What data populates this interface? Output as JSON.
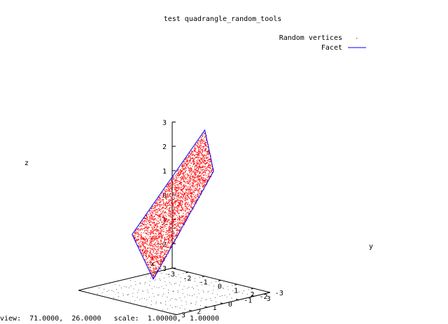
{
  "chart_data": {
    "type": "scatter3d",
    "title": "test quadrangle_random_tools",
    "xlabel": "x",
    "ylabel": "y",
    "zlabel": "z",
    "xlim": [
      -3,
      3
    ],
    "ylim": [
      -3,
      3
    ],
    "zlim": [
      -3,
      3
    ],
    "x_ticks": [
      "-3",
      "-2",
      "-1",
      "0",
      "1",
      "2",
      "3"
    ],
    "y_ticks": [
      "-3",
      "-2",
      "-1",
      "0",
      "1",
      "2",
      "3"
    ],
    "z_ticks": [
      "-3",
      "-2",
      "-1",
      "0",
      "1",
      "2",
      "3"
    ],
    "view": {
      "rot_x": 71,
      "rot_z": 26,
      "scale": 1,
      "scale_z": 1
    },
    "legend_position": "top-right",
    "series": [
      {
        "name": "Random vertices",
        "style": "dots",
        "color": "#ff0000",
        "description_region": "points uniformly filling the facet quadrangle"
      },
      {
        "name": "Facet",
        "style": "lines",
        "color": "#0000ff",
        "vertices": [
          {
            "x": -1.0,
            "y": -3.0,
            "z": 3.0
          },
          {
            "x": 2.6,
            "y": 0.2,
            "z": 2.4
          },
          {
            "x": 1.2,
            "y": 2.6,
            "z": -1.9
          },
          {
            "x": -2.3,
            "y": 0.3,
            "z": -1.0
          }
        ]
      }
    ]
  },
  "status_bar": {
    "view_label": "view:",
    "view_values": "71.0000,  26.0000",
    "scale_label": "scale:",
    "scale_values": "1.00000,  1.00000"
  }
}
